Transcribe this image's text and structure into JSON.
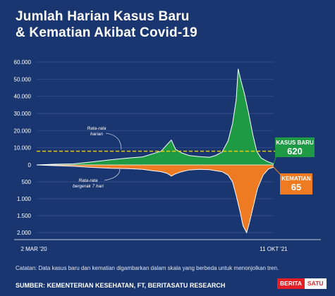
{
  "header": {
    "title_line1": "Jumlah Harian Kasus Baru",
    "title_line2": "& Kematian Akibat Covid-19"
  },
  "chart_data": {
    "type": "area",
    "x_start_label": "2 MAR '20",
    "x_end_label": "11 OKT '21",
    "y_upper_ticks": [
      "60.000",
      "50.000",
      "40.000",
      "30.000",
      "20.000",
      "10.000",
      "0"
    ],
    "y_lower_ticks": [
      "500",
      "1.000",
      "1.500",
      "2.000"
    ],
    "upper_ylim": [
      0,
      60000
    ],
    "lower_ylim": [
      0,
      2000
    ],
    "series": [
      {
        "name": "Kasus Baru",
        "color": "#1f9a44",
        "points": [
          [
            "2020-03-02",
            0
          ],
          [
            "2020-04-15",
            400
          ],
          [
            "2020-06-01",
            600
          ],
          [
            "2020-07-15",
            1700
          ],
          [
            "2020-09-01",
            3000
          ],
          [
            "2020-10-15",
            4000
          ],
          [
            "2020-11-20",
            4700
          ],
          [
            "2020-12-15",
            6500
          ],
          [
            "2021-01-05",
            8000
          ],
          [
            "2021-01-20",
            12000
          ],
          [
            "2021-01-30",
            14500
          ],
          [
            "2021-02-10",
            9000
          ],
          [
            "2021-02-25",
            7000
          ],
          [
            "2021-03-15",
            5500
          ],
          [
            "2021-04-10",
            4800
          ],
          [
            "2021-05-05",
            4500
          ],
          [
            "2021-05-20",
            5500
          ],
          [
            "2021-06-05",
            7500
          ],
          [
            "2021-06-20",
            14000
          ],
          [
            "2021-07-01",
            24000
          ],
          [
            "2021-07-10",
            38000
          ],
          [
            "2021-07-15",
            56000
          ],
          [
            "2021-07-22",
            49000
          ],
          [
            "2021-07-30",
            42000
          ],
          [
            "2021-08-10",
            30000
          ],
          [
            "2021-08-20",
            18000
          ],
          [
            "2021-08-30",
            8000
          ],
          [
            "2021-09-10",
            4000
          ],
          [
            "2021-09-25",
            2000
          ],
          [
            "2021-10-11",
            620
          ]
        ]
      },
      {
        "name": "Kematian",
        "color": "#ee7a22",
        "points": [
          [
            "2020-03-02",
            0
          ],
          [
            "2020-04-15",
            20
          ],
          [
            "2020-06-01",
            40
          ],
          [
            "2020-07-15",
            70
          ],
          [
            "2020-09-01",
            100
          ],
          [
            "2020-10-15",
            110
          ],
          [
            "2020-11-20",
            130
          ],
          [
            "2020-12-15",
            170
          ],
          [
            "2021-01-05",
            200
          ],
          [
            "2021-01-20",
            250
          ],
          [
            "2021-01-30",
            330
          ],
          [
            "2021-02-10",
            260
          ],
          [
            "2021-02-25",
            200
          ],
          [
            "2021-03-15",
            150
          ],
          [
            "2021-04-10",
            130
          ],
          [
            "2021-05-05",
            140
          ],
          [
            "2021-05-20",
            170
          ],
          [
            "2021-06-05",
            200
          ],
          [
            "2021-06-20",
            300
          ],
          [
            "2021-07-01",
            500
          ],
          [
            "2021-07-10",
            900
          ],
          [
            "2021-07-20",
            1400
          ],
          [
            "2021-07-27",
            1800
          ],
          [
            "2021-08-05",
            2000
          ],
          [
            "2021-08-12",
            1700
          ],
          [
            "2021-08-22",
            1200
          ],
          [
            "2021-09-01",
            700
          ],
          [
            "2021-09-15",
            300
          ],
          [
            "2021-09-28",
            120
          ],
          [
            "2021-10-11",
            65
          ]
        ]
      }
    ],
    "avg_line": {
      "value": 8000,
      "color": "#f5d311"
    },
    "annotations": {
      "rata_harian": "Rata-rata harian",
      "rata_7hari": "Rata-rata bergerak 7 hari"
    },
    "callouts": [
      {
        "label": "KASUS BARU",
        "value": "620"
      },
      {
        "label": "KEMATIAN",
        "value": "65"
      }
    ]
  },
  "footer": {
    "note": "Catatan: Data kasus baru dan kematian digambarkan dalam skala yang berbeda untuk menonjolkan tren.",
    "source": "SUMBER: KEMENTERIAN KESEHATAN, FT, BERITASATU RESEARCH",
    "logo_part1": "BERITA",
    "logo_part2": "SATU"
  }
}
